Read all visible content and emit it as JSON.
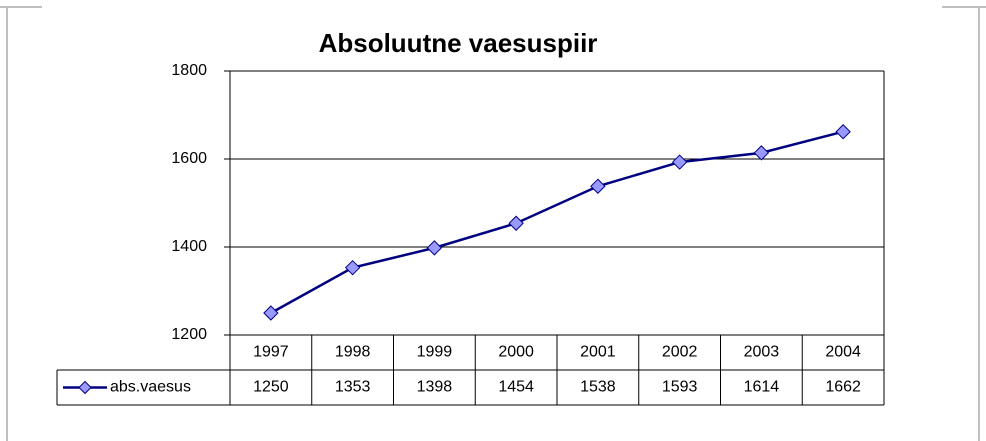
{
  "chart_data": {
    "type": "line",
    "title": "Absoluutne vaesuspiir",
    "categories": [
      "1997",
      "1998",
      "1999",
      "2000",
      "2001",
      "2002",
      "2003",
      "2004"
    ],
    "series": [
      {
        "name": "abs.vaesus",
        "color": "#000080",
        "marker_color": "#9999ff",
        "values": [
          1250,
          1353,
          1398,
          1454,
          1538,
          1593,
          1614,
          1662
        ]
      }
    ],
    "ylim": [
      1200,
      1800
    ],
    "yticks": [
      1200,
      1400,
      1600,
      1800
    ],
    "grid": true
  }
}
